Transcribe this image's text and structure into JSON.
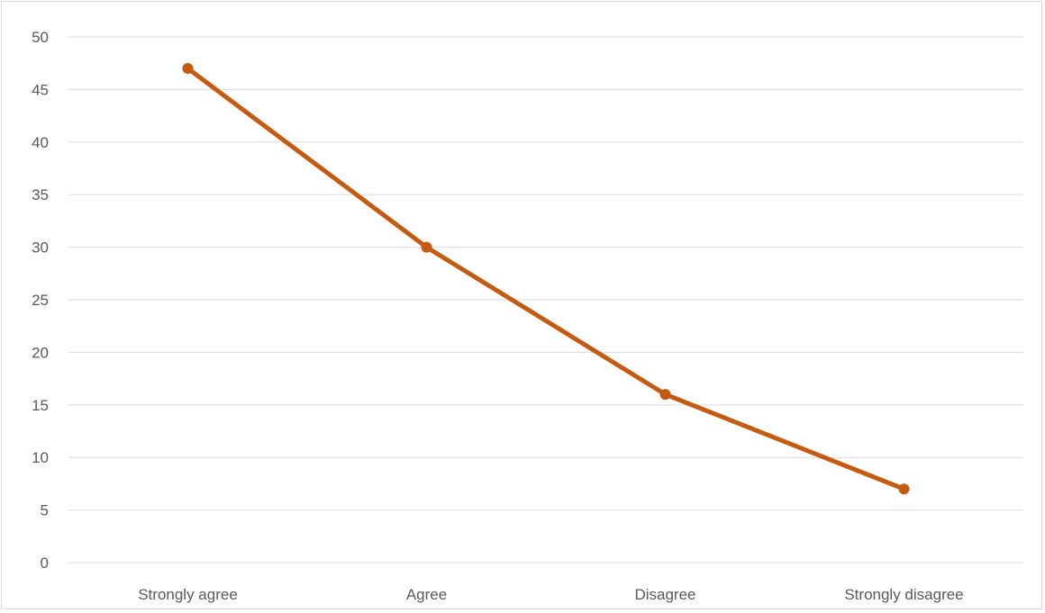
{
  "chart_data": {
    "type": "line",
    "title": "",
    "xlabel": "",
    "ylabel": "",
    "categories": [
      "Strongly agree",
      "Agree",
      "Disagree",
      "Strongly disagree"
    ],
    "series": [
      {
        "values": [
          47,
          30,
          16,
          7
        ],
        "color": "#c55a11"
      }
    ],
    "ylim": [
      0,
      50
    ],
    "yticks": [
      0,
      5,
      10,
      15,
      20,
      25,
      30,
      35,
      40,
      45,
      50
    ],
    "grid": true,
    "legend": "none",
    "gridline_color": "#d9d9d9",
    "tick_label_color": "#595959"
  }
}
